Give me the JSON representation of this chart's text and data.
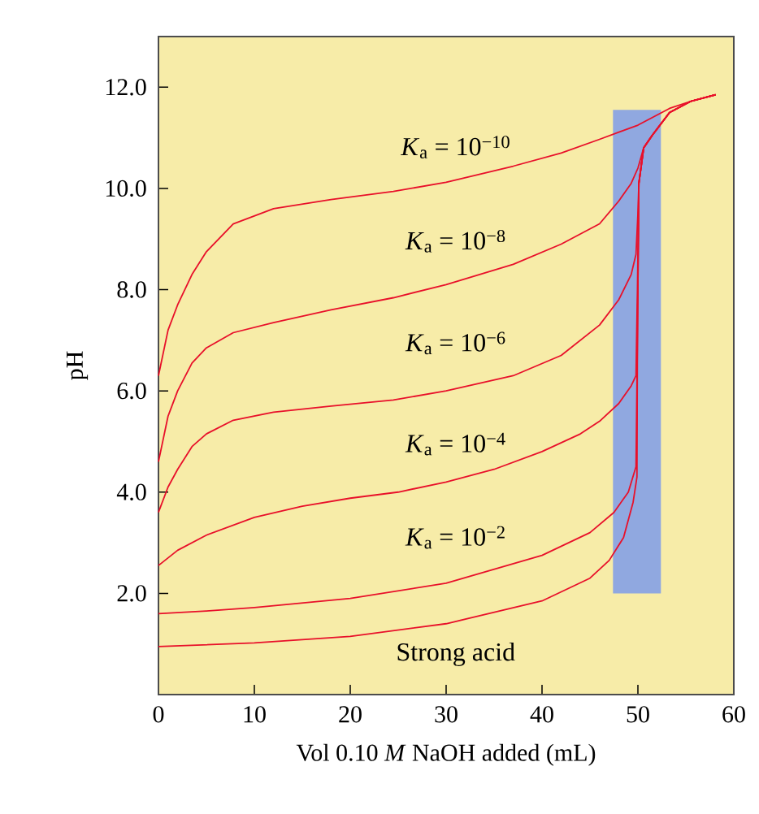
{
  "chart_data": {
    "type": "line",
    "xlabel": "Vol 0.10 *M* NaOH added (mL)",
    "ylabel": "pH",
    "xlim": [
      0,
      60
    ],
    "ylim": [
      0,
      13
    ],
    "xticks": [
      0,
      10,
      20,
      30,
      40,
      50,
      60
    ],
    "yticks": [
      {
        "value": 2,
        "label": "2.0"
      },
      {
        "value": 4,
        "label": "4.0"
      },
      {
        "value": 6,
        "label": "6.0"
      },
      {
        "value": 8,
        "label": "8.0"
      },
      {
        "value": 10,
        "label": "10.0"
      },
      {
        "value": 12,
        "label": "12.0"
      }
    ],
    "series": [
      {
        "type": "bar",
        "color": "#90a8e0",
        "x": [
          49.9
        ],
        "base": [
          2.0
        ],
        "values": [
          9.55
        ]
      },
      {
        "name": "*K*$_{a}$ = 10$^{−10}$",
        "color": "#e8102a",
        "x": [
          0,
          1,
          2,
          3.5,
          5,
          7.8,
          12,
          18,
          24.5,
          30,
          37,
          42,
          46,
          50,
          53.3,
          55.5,
          58.1
        ],
        "values": [
          6.3,
          7.2,
          7.7,
          8.3,
          8.75,
          9.3,
          9.6,
          9.78,
          9.94,
          10.12,
          10.44,
          10.7,
          10.97,
          11.25,
          11.58,
          11.72,
          11.85
        ]
      },
      {
        "name": "*K*$_{a}$ = 10$^{−8}$",
        "color": "#e8102a",
        "x": [
          0,
          1,
          2,
          3.5,
          5,
          7.8,
          12,
          18,
          24.5,
          30,
          37,
          42,
          46,
          48,
          49.3,
          50,
          50.6,
          51.5,
          53.3,
          55.5,
          58.1
        ],
        "values": [
          4.6,
          5.5,
          6.0,
          6.55,
          6.85,
          7.15,
          7.35,
          7.6,
          7.84,
          8.1,
          8.5,
          8.9,
          9.3,
          9.75,
          10.1,
          10.4,
          10.8,
          11.05,
          11.5,
          11.72,
          11.85
        ]
      },
      {
        "name": "*K*$_{a}$ = 10$^{−6}$",
        "color": "#e8102a",
        "x": [
          0,
          1,
          2,
          3.5,
          5,
          7.8,
          12,
          18,
          24.5,
          30,
          37,
          42,
          46,
          48,
          49.3,
          49.8,
          50,
          50.1,
          50.6,
          51.5,
          53.3,
          55.5,
          58.1
        ],
        "values": [
          3.6,
          4.1,
          4.45,
          4.9,
          5.15,
          5.42,
          5.58,
          5.7,
          5.82,
          6.0,
          6.3,
          6.7,
          7.3,
          7.8,
          8.3,
          8.7,
          9.5,
          10.1,
          10.8,
          11.05,
          11.5,
          11.72,
          11.85
        ]
      },
      {
        "name": "*K*$_{a}$ = 10$^{−4}$",
        "color": "#e8102a",
        "x": [
          0,
          2,
          5,
          10,
          15,
          20,
          25,
          30,
          35,
          40,
          44,
          46,
          48,
          49.3,
          49.8,
          49.95,
          50.1,
          50.6,
          51.5,
          53.3,
          55.5,
          58.1
        ],
        "values": [
          2.55,
          2.85,
          3.15,
          3.5,
          3.72,
          3.88,
          4.0,
          4.2,
          4.45,
          4.8,
          5.15,
          5.4,
          5.75,
          6.1,
          6.3,
          8.0,
          10.1,
          10.8,
          11.05,
          11.5,
          11.72,
          11.85
        ]
      },
      {
        "name": "*K*$_{a}$ = 10$^{−2}$",
        "color": "#e8102a",
        "x": [
          0,
          5,
          10,
          20,
          30,
          40,
          45,
          47.5,
          49,
          49.8,
          49.95,
          50.1,
          50.6,
          51.5,
          53.3,
          55.5,
          58.1
        ],
        "values": [
          1.6,
          1.65,
          1.72,
          1.9,
          2.2,
          2.75,
          3.2,
          3.6,
          4.0,
          4.5,
          7.0,
          10.1,
          10.8,
          11.05,
          11.5,
          11.72,
          11.85
        ]
      },
      {
        "name": "Strong acid",
        "color": "#e8102a",
        "x": [
          0,
          10,
          20,
          30,
          40,
          45,
          47,
          48.5,
          49.5,
          49.9,
          49.95,
          50.1,
          50.6,
          51.5,
          53.3,
          55.5,
          58.1
        ],
        "values": [
          0.95,
          1.02,
          1.15,
          1.4,
          1.85,
          2.3,
          2.65,
          3.1,
          3.8,
          4.3,
          7.0,
          10.1,
          10.8,
          11.05,
          11.5,
          11.72,
          11.85
        ]
      }
    ]
  }
}
